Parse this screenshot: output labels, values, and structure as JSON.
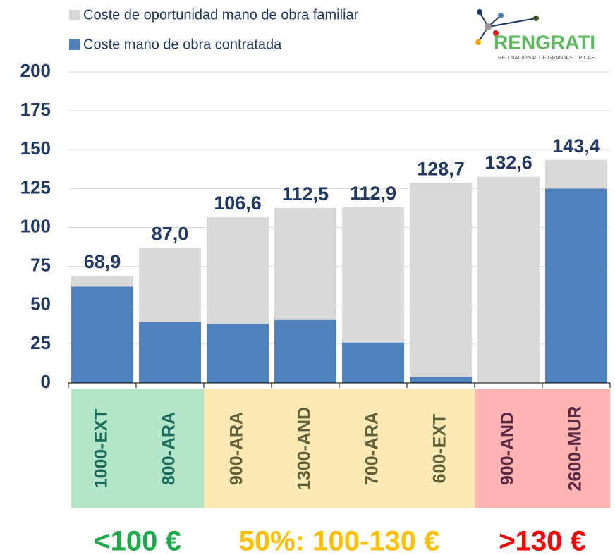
{
  "chart_data": {
    "type": "stacked_bar",
    "categories": [
      "1000-EXT",
      "800-ARA",
      "900-ARA",
      "1300-AND",
      "700-ARA",
      "600-EXT",
      "900-AND",
      "2600-MUR"
    ],
    "series": [
      {
        "name": "Coste mano de obra contratada",
        "color": "#4f81bd",
        "values": [
          62,
          39.5,
          38,
          40.5,
          26,
          4,
          0,
          125
        ]
      },
      {
        "name": "Coste de oportunidad mano de obra familiar",
        "color": "#d9d9d9",
        "values": [
          6.9,
          47.5,
          68.6,
          72,
          86.9,
          124.7,
          132.6,
          18.4
        ]
      }
    ],
    "totals": [
      68.9,
      87.0,
      106.6,
      112.5,
      112.9,
      128.7,
      132.6,
      143.4
    ],
    "total_labels": [
      "68,9",
      "87,0",
      "106,6",
      "112,5",
      "112,9",
      "128,7",
      "132,6",
      "143,4"
    ],
    "ylim": [
      0,
      200
    ],
    "yticks": [
      0,
      25,
      50,
      75,
      100,
      125,
      150,
      175,
      200
    ],
    "grid": true,
    "groups": [
      {
        "label": "<100 €",
        "size": 2,
        "color": "#1bab4b",
        "background": "#b3e6c8",
        "text_color": "#1a6b5a"
      },
      {
        "label": "50%: 100-130 €",
        "size": 4,
        "color": "#ffc000",
        "background": "#fde9b3",
        "text_color": "#5f5f3a"
      },
      {
        "label": ">130 €",
        "size": 2,
        "color": "#ff0000",
        "background": "#ffb3b3",
        "text_color": "#5a2a44"
      }
    ],
    "logo": {
      "name": "RENGRATI",
      "subtitle": "RED NACIONAL DE GRANJAS TÍPICAS"
    }
  }
}
